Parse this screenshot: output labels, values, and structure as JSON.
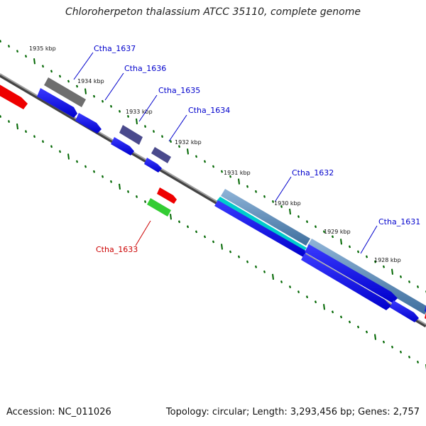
{
  "title": "Chloroherpeton thalassium ATCC 35110, complete genome",
  "footer": {
    "accession": "Accession: NC_011026",
    "summary": "Topology: circular; Length: 3,293,456 bp; Genes: 2,757"
  },
  "ticks": [
    {
      "label": "1935 kbp"
    },
    {
      "label": "1934 kbp"
    },
    {
      "label": "1933 kbp"
    },
    {
      "label": "1932 kbp"
    },
    {
      "label": "1931 kbp"
    },
    {
      "label": "1930 kbp"
    },
    {
      "label": "1929 kbp"
    },
    {
      "label": "1928 kbp"
    }
  ],
  "genes": [
    {
      "name": "Ctha_1637",
      "color": "#0000cc"
    },
    {
      "name": "Ctha_1636",
      "color": "#0000cc"
    },
    {
      "name": "Ctha_1635",
      "color": "#0000cc"
    },
    {
      "name": "Ctha_1634",
      "color": "#0000cc"
    },
    {
      "name": "Ctha_1633",
      "color": "#cc0000"
    },
    {
      "name": "Ctha_1632",
      "color": "#0000cc"
    },
    {
      "name": "Ctha_1631",
      "color": "#0000cc"
    }
  ],
  "colors": {
    "backbone": "#7f7f7f",
    "tick": "#006600",
    "cds": "#0000ee",
    "red_feature": "#ee0000",
    "green_feature": "#33cc33",
    "gray_feature": "#6e6e6e",
    "purple_feature": "#4a4a8c",
    "steel_feature": "#4f7fae",
    "cyan_feature": "#00cccc"
  }
}
